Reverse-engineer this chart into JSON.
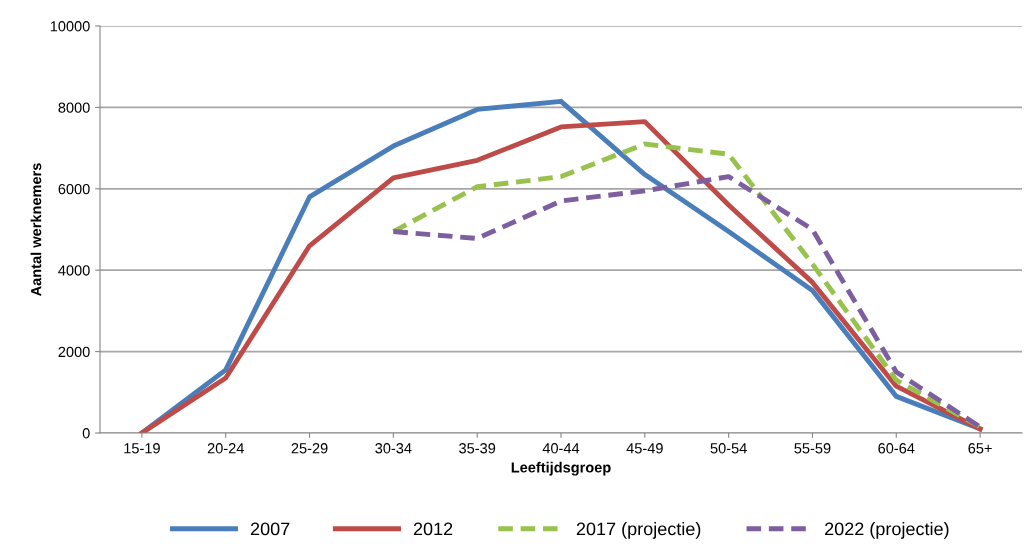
{
  "chart_data": {
    "type": "line",
    "xlabel": "Leeftijdsgroep",
    "ylabel": "Aantal werknemers",
    "categories": [
      "15-19",
      "20-24",
      "25-29",
      "30-34",
      "35-39",
      "40-44",
      "45-49",
      "50-54",
      "55-59",
      "60-64",
      "65+"
    ],
    "series": [
      {
        "name": "2007",
        "color": "#4a7ebb",
        "line_style": "solid",
        "values": [
          0,
          1550,
          5800,
          7050,
          7950,
          8150,
          6350,
          4950,
          3500,
          900,
          100
        ]
      },
      {
        "name": "2012",
        "color": "#be4b48",
        "line_style": "solid",
        "values": [
          0,
          1350,
          4600,
          6270,
          6700,
          7520,
          7650,
          5600,
          3700,
          1150,
          100
        ]
      },
      {
        "name": "2017 (projectie)",
        "color": "#98c24e",
        "line_style": "dashed",
        "values": [
          null,
          null,
          null,
          4950,
          6050,
          6300,
          7100,
          6850,
          4150,
          1300,
          150
        ]
      },
      {
        "name": "2022 (projectie)",
        "color": "#7d5fa0",
        "line_style": "dashed",
        "values": [
          null,
          null,
          null,
          4950,
          4780,
          5700,
          5950,
          6300,
          5000,
          1500,
          150
        ]
      }
    ],
    "ylim": [
      0,
      10000
    ],
    "yticks": [
      0,
      2000,
      4000,
      6000,
      8000,
      10000
    ],
    "grid": "y",
    "legend": "bottom",
    "marker": "none"
  }
}
